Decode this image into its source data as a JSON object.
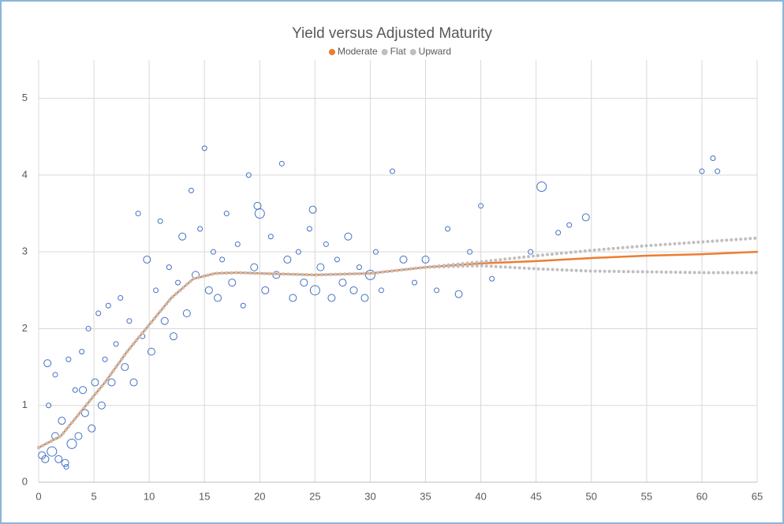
{
  "chart_data": {
    "type": "scatter",
    "title": "Yield versus Adjusted Maturity",
    "xlim": [
      0,
      65
    ],
    "xticks": [
      0,
      5,
      10,
      15,
      20,
      25,
      30,
      35,
      40,
      45,
      50,
      55,
      60,
      65
    ],
    "ylim": [
      0,
      5.5
    ],
    "yticks": [
      0,
      1,
      2,
      3,
      4,
      5
    ],
    "grid": true,
    "legend": "top",
    "series": [
      {
        "type": "scatter",
        "color": "#4472c4",
        "x": [
          0.3,
          0.6,
          0.9,
          1.2,
          1.5,
          1.8,
          2.1,
          2.4,
          2.7,
          3.0,
          3.3,
          3.6,
          3.9,
          4.2,
          4.5,
          4.8,
          5.1,
          5.4,
          5.7,
          6.0,
          6.3,
          6.6,
          7.0,
          7.4,
          7.8,
          8.2,
          8.6,
          9.0,
          9.4,
          9.8,
          10.2,
          10.6,
          11.0,
          11.4,
          11.8,
          12.2,
          12.6,
          13.0,
          13.4,
          13.8,
          14.2,
          14.6,
          15.0,
          15.4,
          15.8,
          16.2,
          16.6,
          17.0,
          17.5,
          18.0,
          18.5,
          19.0,
          19.5,
          20.0,
          20.5,
          21.0,
          21.5,
          22.0,
          22.5,
          23.0,
          23.5,
          24.0,
          24.5,
          25.0,
          25.5,
          26.0,
          26.5,
          27.0,
          27.5,
          28.0,
          28.5,
          29.0,
          29.5,
          30.0,
          30.5,
          31.0,
          32.0,
          33.0,
          34.0,
          35.0,
          36.0,
          37.0,
          38.0,
          39.0,
          40.0,
          41.0,
          44.5,
          45.5,
          47.0,
          48.0,
          49.5,
          60.0,
          61.0,
          61.4,
          0.8,
          1.5,
          2.5,
          4.0,
          19.8,
          24.8
        ],
        "values": [
          0.35,
          0.3,
          1.0,
          0.4,
          1.4,
          0.3,
          0.8,
          0.25,
          1.6,
          0.5,
          1.2,
          0.6,
          1.7,
          0.9,
          2.0,
          0.7,
          1.3,
          2.2,
          1.0,
          1.6,
          2.3,
          1.3,
          1.8,
          2.4,
          1.5,
          2.1,
          1.3,
          3.5,
          1.9,
          2.9,
          1.7,
          2.5,
          3.4,
          2.1,
          2.8,
          1.9,
          2.6,
          3.2,
          2.2,
          3.8,
          2.7,
          3.3,
          4.35,
          2.5,
          3.0,
          2.4,
          2.9,
          3.5,
          2.6,
          3.1,
          2.3,
          4.0,
          2.8,
          3.5,
          2.5,
          3.2,
          2.7,
          4.15,
          2.9,
          2.4,
          3.0,
          2.6,
          3.3,
          2.5,
          2.8,
          3.1,
          2.4,
          2.9,
          2.6,
          3.2,
          2.5,
          2.8,
          2.4,
          2.7,
          3.0,
          2.5,
          4.05,
          2.9,
          2.6,
          2.9,
          2.5,
          3.3,
          2.45,
          3.0,
          3.6,
          2.65,
          3.0,
          3.85,
          3.25,
          3.35,
          3.45,
          4.05,
          4.22,
          4.05,
          1.55,
          0.6,
          0.2,
          1.2,
          3.6,
          3.55
        ],
        "sizes": [
          2,
          2,
          1,
          3,
          1,
          2,
          2,
          2,
          1,
          3,
          1,
          2,
          1,
          2,
          1,
          2,
          2,
          1,
          2,
          1,
          1,
          2,
          1,
          1,
          2,
          1,
          2,
          1,
          1,
          2,
          2,
          1,
          1,
          2,
          1,
          2,
          1,
          2,
          2,
          1,
          2,
          1,
          1,
          2,
          1,
          2,
          1,
          1,
          2,
          1,
          1,
          1,
          2,
          3,
          2,
          1,
          2,
          1,
          2,
          2,
          1,
          2,
          1,
          3,
          2,
          1,
          2,
          1,
          2,
          2,
          2,
          1,
          2,
          3,
          1,
          1,
          1,
          2,
          1,
          2,
          1,
          1,
          2,
          1,
          1,
          1,
          1,
          3,
          1,
          1,
          2,
          1,
          1,
          1,
          2,
          2,
          1,
          2,
          2,
          2
        ]
      },
      {
        "type": "line",
        "name": "Moderate",
        "color": "#ed7d31",
        "style": "solid",
        "x": [
          0,
          2,
          4,
          6,
          8,
          10,
          12,
          14,
          16,
          18,
          20,
          25,
          30,
          35,
          40,
          45,
          50,
          55,
          60,
          65
        ],
        "values": [
          0.45,
          0.6,
          0.95,
          1.3,
          1.7,
          2.05,
          2.4,
          2.65,
          2.72,
          2.73,
          2.72,
          2.7,
          2.72,
          2.8,
          2.85,
          2.88,
          2.92,
          2.95,
          2.97,
          3.0
        ]
      },
      {
        "type": "line",
        "name": "Flat",
        "color": "#bfbfbf",
        "style": "dotted",
        "x": [
          0,
          2,
          4,
          6,
          8,
          10,
          12,
          14,
          16,
          18,
          20,
          25,
          30,
          35,
          40,
          45,
          50,
          55,
          60,
          65
        ],
        "values": [
          0.45,
          0.6,
          0.95,
          1.3,
          1.7,
          2.05,
          2.4,
          2.65,
          2.72,
          2.73,
          2.72,
          2.7,
          2.72,
          2.8,
          2.82,
          2.78,
          2.75,
          2.74,
          2.73,
          2.73
        ]
      },
      {
        "type": "line",
        "name": "Upward",
        "color": "#bfbfbf",
        "style": "dotted",
        "x": [
          0,
          2,
          4,
          6,
          8,
          10,
          12,
          14,
          16,
          18,
          20,
          25,
          30,
          35,
          40,
          45,
          50,
          55,
          60,
          65
        ],
        "values": [
          0.45,
          0.6,
          0.95,
          1.3,
          1.7,
          2.05,
          2.4,
          2.65,
          2.72,
          2.73,
          2.72,
          2.7,
          2.72,
          2.8,
          2.87,
          2.95,
          3.02,
          3.08,
          3.13,
          3.18
        ]
      }
    ]
  }
}
